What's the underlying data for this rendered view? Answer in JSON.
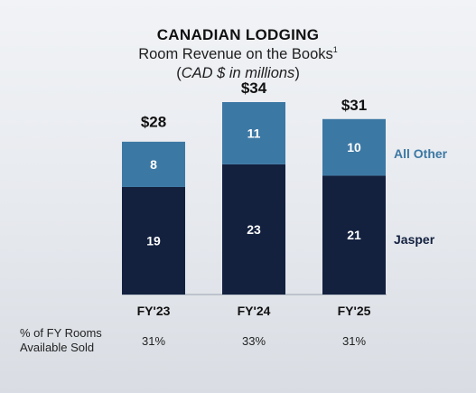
{
  "header": {
    "title": "CANADIAN LODGING",
    "subtitle": "Room Revenue on the Books",
    "subtitle_footnote": "1",
    "units_open": "(",
    "units": "CAD $ in millions",
    "units_close": ")"
  },
  "chart_data": {
    "type": "bar",
    "stacked": true,
    "categories": [
      "FY'23",
      "FY'24",
      "FY'25"
    ],
    "series": [
      {
        "name": "Jasper",
        "values": [
          19,
          23,
          21
        ],
        "color": "#13213f"
      },
      {
        "name": "All Other",
        "values": [
          8,
          11,
          10
        ],
        "color": "#3c78a4"
      }
    ],
    "totals": [
      "$28",
      "$34",
      "$31"
    ],
    "total_values": [
      28,
      34,
      31
    ],
    "ylim": [
      0,
      34
    ],
    "grid": false,
    "legend": "right, beside FY'25 bar"
  },
  "footer": {
    "row_label_line1": "% of FY Rooms",
    "row_label_line2": "Available Sold",
    "values": [
      "31%",
      "33%",
      "31%"
    ]
  }
}
